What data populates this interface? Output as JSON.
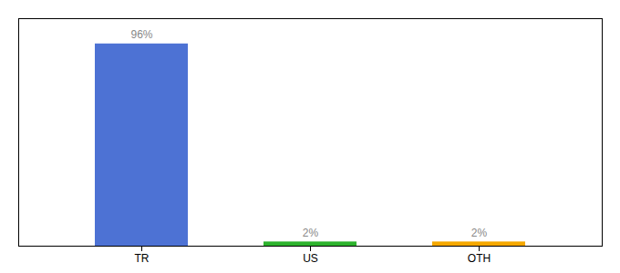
{
  "chart_data": {
    "type": "bar",
    "categories": [
      "TR",
      "US",
      "OTH"
    ],
    "values": [
      96,
      2,
      2
    ],
    "colors": [
      "#4d72d4",
      "#2db32d",
      "#f5a800"
    ],
    "value_labels": [
      "96%",
      "2%",
      "2%"
    ],
    "data_labels": true,
    "ylim": [
      0,
      108
    ],
    "yticks": [],
    "tick_labels": "x",
    "grid": false
  }
}
